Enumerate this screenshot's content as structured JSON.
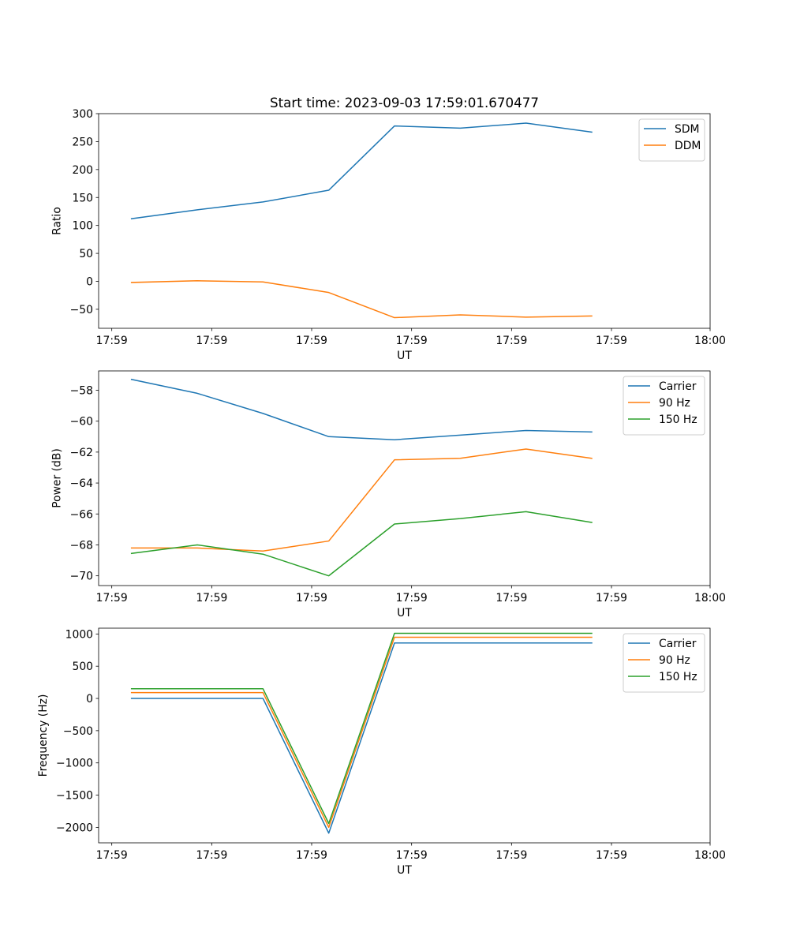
{
  "figure": {
    "title": "Start time: 2023-09-03 17:59:01.670477"
  },
  "chart_data": [
    {
      "type": "line",
      "title": "Start time: 2023-09-03 17:59:01.670477",
      "xlabel": "UT",
      "ylabel": "Ratio",
      "x": [
        0,
        1,
        2,
        3,
        4,
        5,
        6,
        7
      ],
      "xlim": [
        -0.5,
        8.8
      ],
      "xticks": [
        -0.3,
        1.22,
        2.74,
        4.26,
        5.78,
        7.3,
        8.8
      ],
      "xtick_labels": [
        "17:59",
        "17:59",
        "17:59",
        "17:59",
        "17:59",
        "17:59",
        "18:00"
      ],
      "ylim": [
        -84,
        300
      ],
      "yticks": [
        -50,
        0,
        50,
        100,
        150,
        200,
        250,
        300
      ],
      "ytick_labels": [
        "−50",
        "0",
        "50",
        "100",
        "150",
        "200",
        "250",
        "300"
      ],
      "legend_position": "top-right",
      "series": [
        {
          "name": "SDM",
          "color": "#1f77b4",
          "values": [
            112,
            128,
            142,
            163,
            278,
            274,
            283,
            267
          ]
        },
        {
          "name": "DDM",
          "color": "#ff7f0e",
          "values": [
            -2,
            1,
            -1,
            -20,
            -65,
            -60,
            -64,
            -62
          ]
        }
      ]
    },
    {
      "type": "line",
      "title": "",
      "xlabel": "UT",
      "ylabel": "Power (dB)",
      "x": [
        0,
        1,
        2,
        3,
        4,
        5,
        6,
        7
      ],
      "xlim": [
        -0.5,
        8.8
      ],
      "xticks": [
        -0.3,
        1.22,
        2.74,
        4.26,
        5.78,
        7.3,
        8.8
      ],
      "xtick_labels": [
        "17:59",
        "17:59",
        "17:59",
        "17:59",
        "17:59",
        "17:59",
        "18:00"
      ],
      "ylim": [
        -70.63,
        -56.75
      ],
      "yticks": [
        -70,
        -68,
        -66,
        -64,
        -62,
        -60,
        -58
      ],
      "ytick_labels": [
        "−70",
        "−68",
        "−66",
        "−64",
        "−62",
        "−60",
        "−58"
      ],
      "legend_position": "top-right",
      "series": [
        {
          "name": "Carrier",
          "color": "#1f77b4",
          "values": [
            -57.3,
            -58.2,
            -59.5,
            -61.0,
            -61.2,
            -60.9,
            -60.6,
            -60.7
          ]
        },
        {
          "name": "90 Hz",
          "color": "#ff7f0e",
          "values": [
            -68.2,
            -68.2,
            -68.4,
            -67.75,
            -62.5,
            -62.4,
            -61.8,
            -62.4
          ]
        },
        {
          "name": "150 Hz",
          "color": "#2ca02c",
          "values": [
            -68.55,
            -68.0,
            -68.6,
            -70.0,
            -66.65,
            -66.3,
            -65.85,
            -66.55
          ]
        }
      ]
    },
    {
      "type": "line",
      "title": "",
      "xlabel": "UT",
      "ylabel": "Frequency (Hz)",
      "x": [
        0,
        1,
        2,
        3,
        4,
        5,
        6,
        7
      ],
      "xlim": [
        -0.5,
        8.8
      ],
      "xticks": [
        -0.3,
        1.22,
        2.74,
        4.26,
        5.78,
        7.3,
        8.8
      ],
      "xtick_labels": [
        "17:59",
        "17:59",
        "17:59",
        "17:59",
        "17:59",
        "17:59",
        "18:00"
      ],
      "ylim": [
        -2240,
        1090
      ],
      "yticks": [
        -2000,
        -1500,
        -1000,
        -500,
        0,
        500,
        1000
      ],
      "ytick_labels": [
        "−2000",
        "−1500",
        "−1000",
        "−500",
        "0",
        "500",
        "1000"
      ],
      "legend_position": "top-right",
      "series": [
        {
          "name": "Carrier",
          "color": "#1f77b4",
          "values": [
            0,
            0,
            0,
            -2090,
            860,
            860,
            860,
            860
          ]
        },
        {
          "name": "90 Hz",
          "color": "#ff7f0e",
          "values": [
            90,
            90,
            90,
            -2000,
            950,
            950,
            950,
            950
          ]
        },
        {
          "name": "150 Hz",
          "color": "#2ca02c",
          "values": [
            150,
            150,
            150,
            -1940,
            1010,
            1010,
            1010,
            1010
          ]
        }
      ]
    }
  ]
}
